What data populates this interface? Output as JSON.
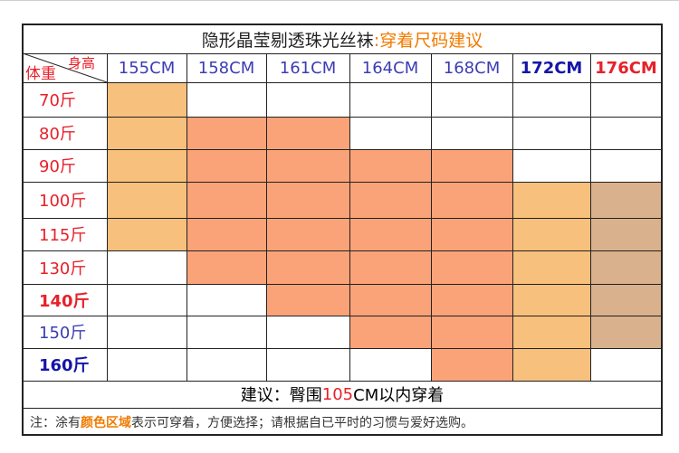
{
  "title": {
    "main": "隐形晶莹剔透珠光丝袜",
    "accent": " :穿着尺码建议",
    "main_color": "#222222",
    "accent_color": "#f07b00"
  },
  "corner": {
    "height_label": "身高",
    "weight_label": "体重",
    "color": "#e8202a"
  },
  "columns": [
    {
      "label": "155CM",
      "color": "#3c3cb4",
      "bold": false
    },
    {
      "label": "158CM",
      "color": "#3c3cb4",
      "bold": false
    },
    {
      "label": "161CM",
      "color": "#3c3cb4",
      "bold": false
    },
    {
      "label": "164CM",
      "color": "#3c3cb4",
      "bold": false
    },
    {
      "label": "168CM",
      "color": "#3c3cb4",
      "bold": false
    },
    {
      "label": "172CM",
      "color": "#1515a8",
      "bold": true
    },
    {
      "label": "176CM",
      "color": "#e8202a",
      "bold": true
    }
  ],
  "rows": [
    {
      "label": "70斤",
      "color": "#e8202a",
      "bold": false
    },
    {
      "label": "80斤",
      "color": "#e8202a",
      "bold": false
    },
    {
      "label": "90斤",
      "color": "#e8202a",
      "bold": false
    },
    {
      "label": "100斤",
      "color": "#e8202a",
      "bold": false
    },
    {
      "label": "115斤",
      "color": "#e8202a",
      "bold": false
    },
    {
      "label": "130斤",
      "color": "#e8202a",
      "bold": false
    },
    {
      "label": "140斤",
      "color": "#e8202a",
      "bold": true
    },
    {
      "label": "150斤",
      "color": "#3c3cb4",
      "bold": false
    },
    {
      "label": "160斤",
      "color": "#1515a8",
      "bold": true
    }
  ],
  "palette": {
    "a": "#f8c07d",
    "b": "#fba378",
    "c": "#d9b18c",
    "w": "#ffffff"
  },
  "fills": [
    [
      "a",
      "w",
      "w",
      "w",
      "w",
      "w",
      "w"
    ],
    [
      "a",
      "b",
      "b",
      "w",
      "w",
      "w",
      "w"
    ],
    [
      "a",
      "b",
      "b",
      "b",
      "b",
      "w",
      "w"
    ],
    [
      "a",
      "b",
      "b",
      "b",
      "b",
      "a",
      "c"
    ],
    [
      "a",
      "b",
      "b",
      "b",
      "b",
      "a",
      "c"
    ],
    [
      "w",
      "b",
      "b",
      "b",
      "b",
      "a",
      "c"
    ],
    [
      "w",
      "w",
      "b",
      "b",
      "b",
      "a",
      "c"
    ],
    [
      "w",
      "w",
      "w",
      "b",
      "b",
      "a",
      "c"
    ],
    [
      "w",
      "w",
      "w",
      "w",
      "b",
      "a",
      "w"
    ]
  ],
  "advice": {
    "prefix": "建议：臀围",
    "value": "105",
    "suffix": "CM以内穿着",
    "value_color": "#e8202a"
  },
  "note": {
    "prefix": "注：涂有",
    "highlight": "颜色区域",
    "suffix": "表示可穿着，方便选择；请根据自已平时的习惯与爱好选购。",
    "highlight_color": "#f07b00"
  }
}
